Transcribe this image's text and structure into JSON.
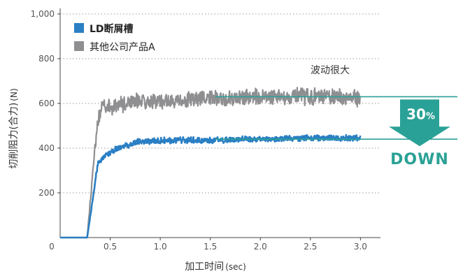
{
  "chart_data": {
    "type": "line",
    "title": "",
    "xlabel": "加工时间",
    "xlabel_unit": "(sec)",
    "ylabel": "切削阻力(合力)",
    "ylabel_unit": "(N)",
    "xlim": [
      0,
      3.2
    ],
    "ylim": [
      0,
      1000
    ],
    "x_ticks": [
      0.5,
      1.0,
      1.5,
      2.0,
      2.5,
      3.0
    ],
    "x_tick_labels": [
      "0.5",
      "1.0",
      "1.5",
      "2.0",
      "2.5",
      "3.0"
    ],
    "x_origin_label": "0",
    "y_ticks": [
      200,
      400,
      600,
      800,
      1000
    ],
    "y_tick_labels": [
      "200",
      "400",
      "600",
      "800",
      "1,000"
    ],
    "grid": "horizontal-dotted",
    "legend_position": "top-left",
    "series": [
      {
        "name": "LD断屑槽",
        "color": "#2b7fc4",
        "x": [
          0.0,
          0.27,
          0.38,
          0.55,
          0.8,
          1.0,
          1.5,
          2.0,
          2.5,
          3.0
        ],
        "y": [
          0,
          0,
          340,
          395,
          430,
          435,
          435,
          440,
          445,
          445
        ],
        "noise_amplitude": 12
      },
      {
        "name": "其他公司产品A",
        "color": "#8f8f92",
        "x": [
          0.0,
          0.27,
          0.36,
          0.42,
          0.5,
          0.8,
          1.0,
          1.5,
          2.0,
          2.5,
          3.0
        ],
        "y": [
          0,
          0,
          470,
          600,
          585,
          615,
          610,
          620,
          630,
          630,
          625
        ],
        "noise_amplitude": 32
      }
    ],
    "annotations": {
      "fluctuation_note": "波动很大",
      "reference_lines": [
        630,
        440
      ],
      "reference_line_color": "#2aa196",
      "reduction_percent": "30",
      "reduction_percent_sign": "%",
      "reduction_word": "DOWN"
    }
  }
}
